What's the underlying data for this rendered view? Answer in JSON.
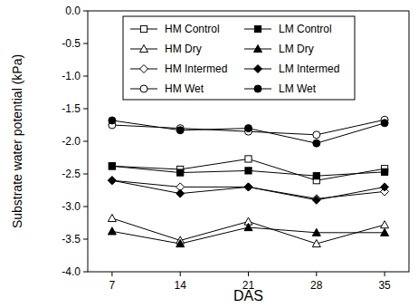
{
  "chart_data": {
    "type": "line",
    "x_label": "DAS",
    "y_label": "Substrate water potential (kPa)",
    "x": [
      7,
      14,
      21,
      28,
      35
    ],
    "xlim": [
      4.5,
      37.5
    ],
    "xticks": [
      7,
      14,
      21,
      28,
      35
    ],
    "ylim": [
      -4,
      0
    ],
    "yticks": [
      {
        "value": 0,
        "label": "0.0"
      },
      -0.5,
      {
        "value": -1,
        "label": "-1.0"
      },
      -1.5,
      {
        "value": -2,
        "label": "-2.0"
      },
      -2.5,
      {
        "value": -3,
        "label": "-3.0"
      },
      -3.5,
      {
        "value": -4,
        "label": "-4.0"
      }
    ],
    "grid": false,
    "legend": "top",
    "series": [
      {
        "name": "HM Control",
        "color": "#000000",
        "marker": "square-open",
        "values": [
          -2.38,
          -2.43,
          -2.27,
          -2.6,
          -2.42
        ]
      },
      {
        "name": "LM Control",
        "color": "#000000",
        "marker": "square",
        "values": [
          -2.38,
          -2.48,
          -2.45,
          -2.53,
          -2.47
        ]
      },
      {
        "name": "HM Dry",
        "color": "#000000",
        "marker": "triangle-open",
        "values": [
          -3.18,
          -3.52,
          -3.23,
          -3.57,
          -3.28
        ]
      },
      {
        "name": "LM Dry",
        "color": "#000000",
        "marker": "triangle",
        "values": [
          -3.38,
          -3.57,
          -3.32,
          -3.4,
          -3.4
        ]
      },
      {
        "name": "HM Intermed",
        "color": "#000000",
        "marker": "diamond-open",
        "values": [
          -2.6,
          -2.7,
          -2.7,
          -2.88,
          -2.77
        ]
      },
      {
        "name": "LM Intermed",
        "color": "#000000",
        "marker": "diamond",
        "values": [
          -2.6,
          -2.8,
          -2.7,
          -2.9,
          -2.7
        ]
      },
      {
        "name": "HM Wet",
        "color": "#000000",
        "marker": "circle-open",
        "values": [
          -1.75,
          -1.8,
          -1.85,
          -1.9,
          -1.67
        ]
      },
      {
        "name": "LM Wet",
        "color": "#000000",
        "marker": "circle",
        "values": [
          -1.68,
          -1.83,
          -1.8,
          -2.03,
          -1.72
        ]
      }
    ]
  }
}
